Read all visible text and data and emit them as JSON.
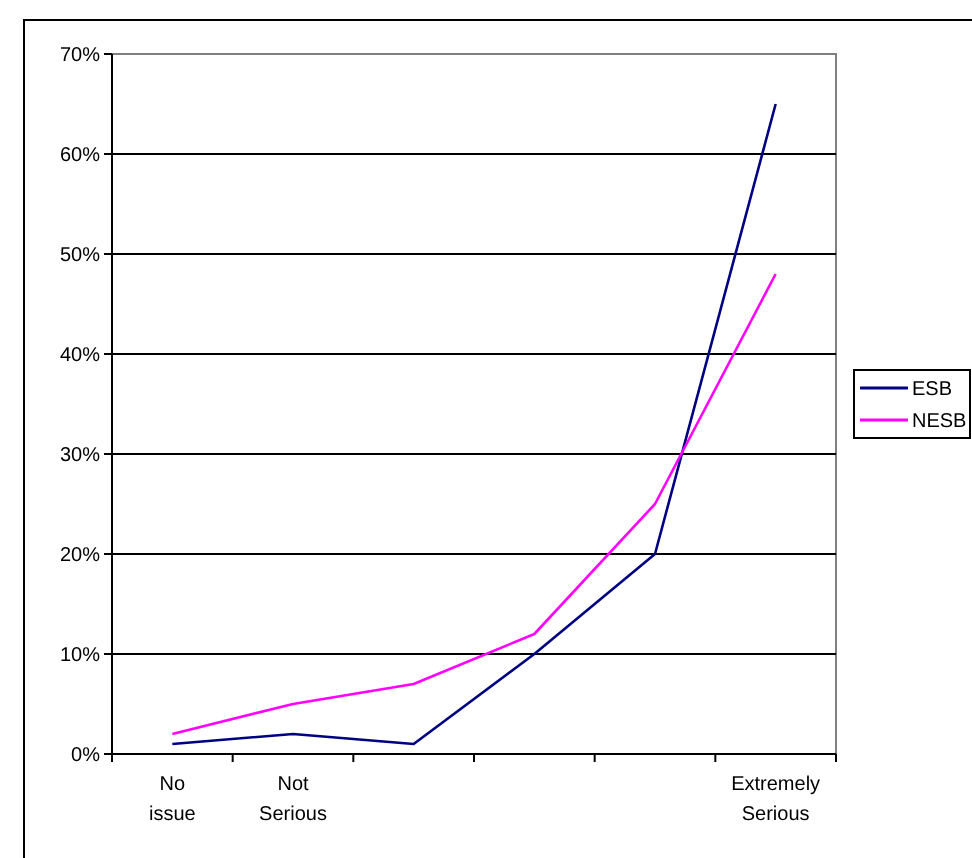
{
  "chart_data": {
    "type": "line",
    "categories": [
      "No issue",
      "Not Serious",
      null,
      null,
      null,
      "Extremely Serious"
    ],
    "series": [
      {
        "name": "ESB",
        "color": "#000080",
        "values": [
          1,
          2,
          1,
          10,
          20,
          65
        ]
      },
      {
        "name": "NESB",
        "color": "#ff00ff",
        "values": [
          2,
          5,
          7,
          12,
          25,
          48
        ]
      }
    ],
    "ylim": [
      0,
      70
    ],
    "yticks": [
      {
        "value": 0,
        "label": "0%"
      },
      {
        "value": 10,
        "label": "10%"
      },
      {
        "value": 20,
        "label": "20%"
      },
      {
        "value": 30,
        "label": "30%"
      },
      {
        "value": 40,
        "label": "40%"
      },
      {
        "value": 50,
        "label": "50%"
      },
      {
        "value": 60,
        "label": "60%"
      },
      {
        "value": 70,
        "label": "70%"
      }
    ],
    "grid": "y",
    "legend": "right",
    "marker": "none",
    "line_style": "solid"
  }
}
